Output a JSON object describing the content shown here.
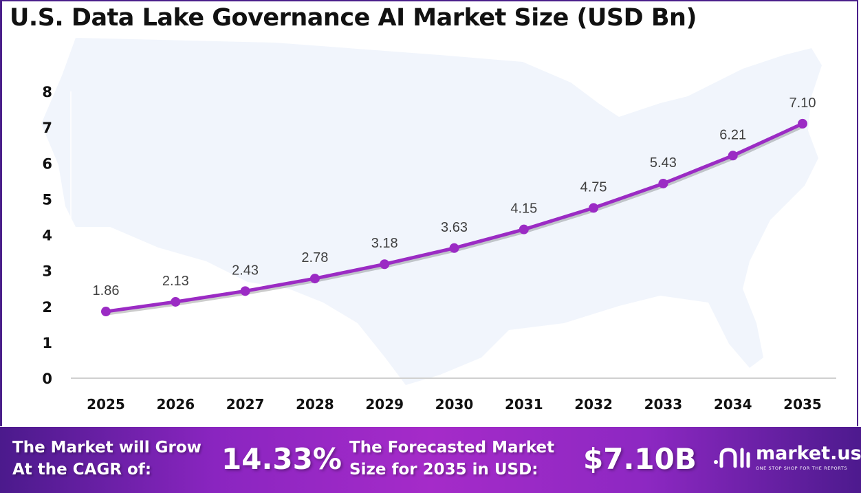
{
  "title": "U.S. Data Lake Governance AI Market Size (USD Bn)",
  "chart_data": {
    "type": "line",
    "title": "U.S. Data Lake Governance AI Market Size (USD Bn)",
    "categories": [
      "2025",
      "2026",
      "2027",
      "2028",
      "2029",
      "2030",
      "2031",
      "2032",
      "2033",
      "2034",
      "2035"
    ],
    "values": [
      1.86,
      2.13,
      2.43,
      2.78,
      3.18,
      3.63,
      4.15,
      4.75,
      5.43,
      6.21,
      7.1
    ],
    "data_labels": [
      "1.86",
      "2.13",
      "2.43",
      "2.78",
      "3.18",
      "3.63",
      "4.15",
      "4.75",
      "5.43",
      "6.21",
      "7.10"
    ],
    "ylim": [
      0,
      8
    ],
    "yticks": [
      "0",
      "1",
      "2",
      "3",
      "4",
      "5",
      "6",
      "7",
      "8"
    ],
    "grid": false,
    "line_color": "#9b2bc4",
    "background": "U.S. map silhouette"
  },
  "footer": {
    "cagr_label_line1": "The Market will Grow",
    "cagr_label_line2": "At the CAGR of:",
    "cagr_value": "14.33%",
    "forecast_label_line1": "The Forecasted Market",
    "forecast_label_line2": "Size for 2035 in USD:",
    "forecast_value": "$7.10B",
    "logo_name": "market.us",
    "logo_tagline": "ONE STOP SHOP FOR THE REPORTS"
  }
}
